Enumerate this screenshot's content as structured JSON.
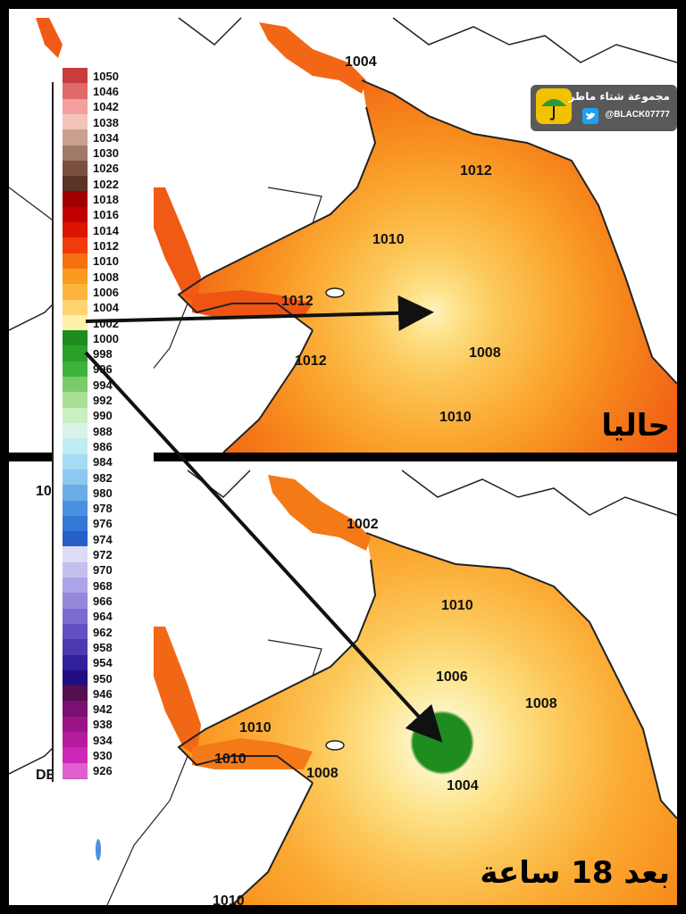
{
  "panels": {
    "top": {
      "caption": "حاليا",
      "isobars": [
        "1004",
        "1012",
        "1010",
        "1012",
        "1012",
        "1008",
        "1010"
      ]
    },
    "bottom": {
      "caption": "بعد 18 ساعة",
      "isobars": [
        "1002",
        "1010",
        "1006",
        "1008",
        "1010",
        "1010",
        "1008",
        "1004",
        "1010",
        "10",
        "DE"
      ]
    }
  },
  "legend": {
    "unit_values": [
      "1050",
      "1046",
      "1042",
      "1038",
      "1034",
      "1030",
      "1026",
      "1022",
      "1018",
      "1016",
      "1014",
      "1012",
      "1010",
      "1008",
      "1006",
      "1004",
      "1002",
      "1000",
      "998",
      "996",
      "994",
      "992",
      "990",
      "988",
      "986",
      "984",
      "982",
      "980",
      "978",
      "976",
      "974",
      "972",
      "970",
      "968",
      "966",
      "964",
      "962",
      "958",
      "954",
      "950",
      "946",
      "942",
      "938",
      "934",
      "930",
      "926"
    ],
    "colors": [
      "#c83c3c",
      "#e06a6a",
      "#f4a0a0",
      "#f4c4b8",
      "#c8a090",
      "#a07a68",
      "#7a5040",
      "#5a3426",
      "#a00000",
      "#c00000",
      "#dc1400",
      "#f03c0a",
      "#f5700f",
      "#fa9a1e",
      "#fcb43c",
      "#fdd470",
      "#fdf0a8",
      "#1e8c1e",
      "#2aa02a",
      "#3cb43c",
      "#7acc6a",
      "#a8e094",
      "#c8f0c0",
      "#d8f4e8",
      "#c0ecf4",
      "#a4dcf4",
      "#8cc8f0",
      "#6aaee8",
      "#4a90e0",
      "#3478d6",
      "#2460c6",
      "#dcdcf4",
      "#c4c0ee",
      "#aca4e6",
      "#9488dc",
      "#7c6cd2",
      "#6450c4",
      "#4c38b0",
      "#30209c",
      "#220e80",
      "#561050",
      "#7a1070",
      "#9a1488",
      "#b41ca0",
      "#cc28b8",
      "#e060d0"
    ]
  },
  "watermark": {
    "title": "مجموعة شتاء ماطر",
    "handle": "@BLACK07777",
    "logo_icon": "umbrella-logo-icon",
    "social_icon": "twitter-bird-icon"
  },
  "colors": {
    "land": "#ffffff",
    "coastline": "#222222",
    "arrow": "#111111"
  }
}
